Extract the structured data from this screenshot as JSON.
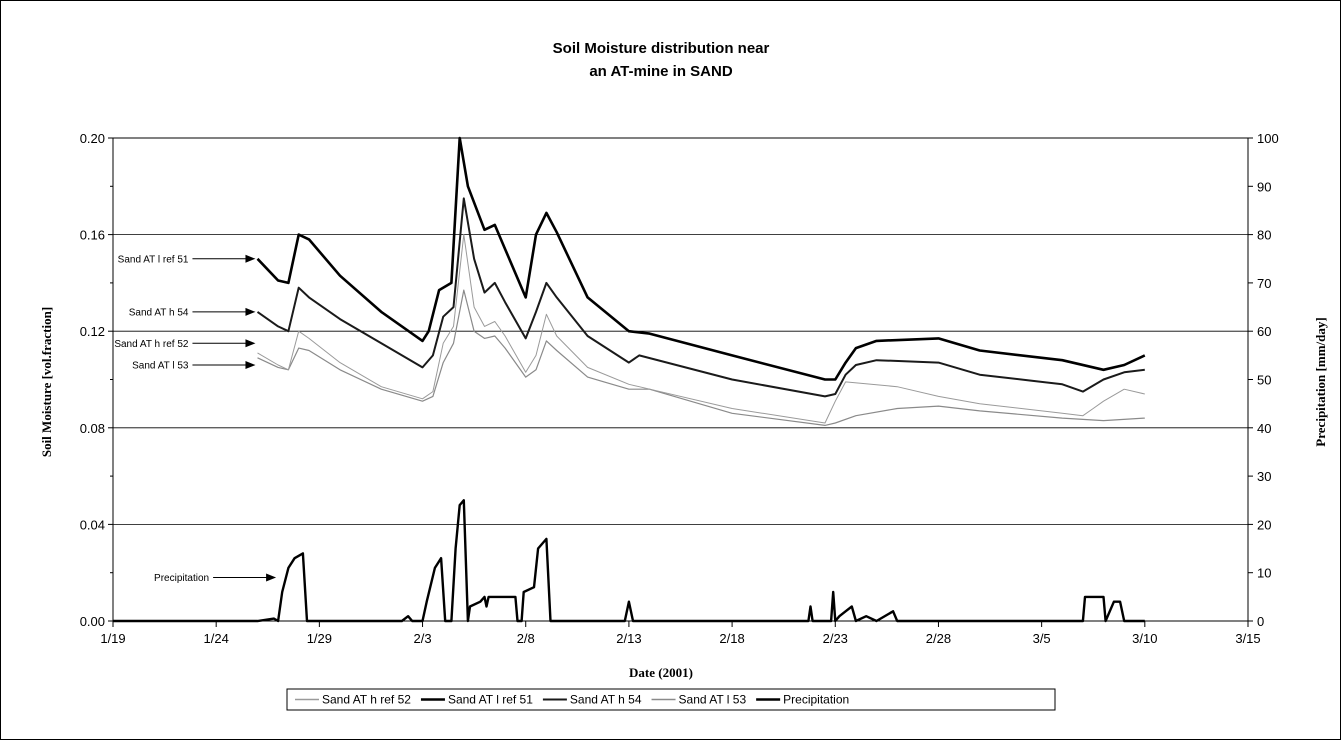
{
  "chart_data": {
    "type": "line",
    "title": "Soil Moisture distribution near",
    "subtitle": "an AT-mine in SAND",
    "xlabel": "Date (2001)",
    "ylabel": "Soil Moisture [vol.fraction]",
    "y2label": "Precipitation [mm/day]",
    "xlim": [
      "1/19",
      "3/15"
    ],
    "x_ticks": [
      "1/19",
      "1/24",
      "1/29",
      "2/3",
      "2/8",
      "2/13",
      "2/18",
      "2/23",
      "2/28",
      "3/5",
      "3/10",
      "3/15"
    ],
    "ylim": [
      0,
      0.2
    ],
    "y_ticks": [
      "0.00",
      "0.04",
      "0.08",
      "0.12",
      "0.16",
      "0.20"
    ],
    "y2lim": [
      0,
      100
    ],
    "y2_ticks": [
      "0",
      "10",
      "20",
      "30",
      "40",
      "50",
      "60",
      "70",
      "80",
      "90",
      "100"
    ],
    "grid": "horizontal at major y ticks",
    "legend_position": "bottom",
    "series": [
      {
        "name": "Sand AT h ref 52",
        "axis": "left",
        "color": "#9a9a9a",
        "points": [
          [
            "1/26",
            0.111
          ],
          [
            "1/27",
            0.106
          ],
          [
            "1/27.5",
            0.104
          ],
          [
            "1/28",
            0.12
          ],
          [
            "1/28.5",
            0.117
          ],
          [
            "1/30",
            0.107
          ],
          [
            "2/1",
            0.097
          ],
          [
            "2/3",
            0.092
          ],
          [
            "2/3.5",
            0.095
          ],
          [
            "2/4",
            0.115
          ],
          [
            "2/4.5",
            0.122
          ],
          [
            "2/5",
            0.16
          ],
          [
            "2/5.5",
            0.13
          ],
          [
            "2/6",
            0.122
          ],
          [
            "2/6.5",
            0.124
          ],
          [
            "2/7",
            0.118
          ],
          [
            "2/8",
            0.103
          ],
          [
            "2/8.5",
            0.11
          ],
          [
            "2/9",
            0.127
          ],
          [
            "2/9.5",
            0.118
          ],
          [
            "2/11",
            0.105
          ],
          [
            "2/13",
            0.098
          ],
          [
            "2/13.5",
            0.097
          ],
          [
            "2/18",
            0.088
          ],
          [
            "2/22.5",
            0.082
          ],
          [
            "2/23",
            0.091
          ],
          [
            "2/23.5",
            0.099
          ],
          [
            "2/26",
            0.097
          ],
          [
            "2/28",
            0.093
          ],
          [
            "3/2",
            0.09
          ],
          [
            "3/6",
            0.086
          ],
          [
            "3/7",
            0.085
          ],
          [
            "3/7.5",
            0.088
          ],
          [
            "3/8",
            0.091
          ],
          [
            "3/9",
            0.096
          ],
          [
            "3/10",
            0.094
          ]
        ]
      },
      {
        "name": "Sand AT l ref 51",
        "axis": "left",
        "color": "#000000",
        "points": [
          [
            "1/26",
            0.15
          ],
          [
            "1/27",
            0.141
          ],
          [
            "1/27.5",
            0.14
          ],
          [
            "1/28",
            0.16
          ],
          [
            "1/28.5",
            0.158
          ],
          [
            "1/30",
            0.143
          ],
          [
            "2/1",
            0.128
          ],
          [
            "2/3",
            0.116
          ],
          [
            "2/3.3",
            0.12
          ],
          [
            "2/3.8",
            0.137
          ],
          [
            "2/4.4",
            0.14
          ],
          [
            "2/4.8",
            0.2
          ],
          [
            "2/5.2",
            0.18
          ],
          [
            "2/6",
            0.162
          ],
          [
            "2/6.5",
            0.164
          ],
          [
            "2/7",
            0.154
          ],
          [
            "2/8",
            0.134
          ],
          [
            "2/8.5",
            0.16
          ],
          [
            "2/9",
            0.169
          ],
          [
            "2/9.5",
            0.161
          ],
          [
            "2/11",
            0.134
          ],
          [
            "2/13",
            0.12
          ],
          [
            "2/14",
            0.119
          ],
          [
            "2/18",
            0.11
          ],
          [
            "2/22.5",
            0.1
          ],
          [
            "2/23",
            0.1
          ],
          [
            "2/23.5",
            0.107
          ],
          [
            "2/24",
            0.113
          ],
          [
            "2/25",
            0.116
          ],
          [
            "2/28",
            0.117
          ],
          [
            "3/2",
            0.112
          ],
          [
            "3/6",
            0.108
          ],
          [
            "3/8",
            0.104
          ],
          [
            "3/9",
            0.106
          ],
          [
            "3/10",
            0.11
          ]
        ]
      },
      {
        "name": "Sand AT h 54",
        "axis": "left",
        "color": "#1a1a1a",
        "points": [
          [
            "1/26",
            0.128
          ],
          [
            "1/27",
            0.122
          ],
          [
            "1/27.5",
            0.12
          ],
          [
            "1/28",
            0.138
          ],
          [
            "1/28.5",
            0.134
          ],
          [
            "1/30",
            0.125
          ],
          [
            "2/1",
            0.115
          ],
          [
            "2/3",
            0.105
          ],
          [
            "2/3.5",
            0.11
          ],
          [
            "2/4",
            0.126
          ],
          [
            "2/4.5",
            0.13
          ],
          [
            "2/5",
            0.175
          ],
          [
            "2/5.5",
            0.15
          ],
          [
            "2/6",
            0.136
          ],
          [
            "2/6.5",
            0.14
          ],
          [
            "2/7",
            0.132
          ],
          [
            "2/8",
            0.117
          ],
          [
            "2/8.5",
            0.128
          ],
          [
            "2/9",
            0.14
          ],
          [
            "2/9.5",
            0.134
          ],
          [
            "2/11",
            0.118
          ],
          [
            "2/13",
            0.107
          ],
          [
            "2/13.5",
            0.11
          ],
          [
            "2/18",
            0.1
          ],
          [
            "2/22.5",
            0.093
          ],
          [
            "2/23",
            0.094
          ],
          [
            "2/23.5",
            0.102
          ],
          [
            "2/24",
            0.106
          ],
          [
            "2/25",
            0.108
          ],
          [
            "2/28",
            0.107
          ],
          [
            "3/2",
            0.102
          ],
          [
            "3/6",
            0.098
          ],
          [
            "3/7",
            0.095
          ],
          [
            "3/8",
            0.1
          ],
          [
            "3/9",
            0.103
          ],
          [
            "3/10",
            0.104
          ]
        ]
      },
      {
        "name": "Sand AT l 53",
        "axis": "left",
        "color": "#8a8a8a",
        "points": [
          [
            "1/26",
            0.109
          ],
          [
            "1/27",
            0.105
          ],
          [
            "1/27.5",
            0.104
          ],
          [
            "1/28",
            0.113
          ],
          [
            "1/28.5",
            0.112
          ],
          [
            "1/30",
            0.104
          ],
          [
            "2/1",
            0.096
          ],
          [
            "2/3",
            0.091
          ],
          [
            "2/3.5",
            0.093
          ],
          [
            "2/4",
            0.107
          ],
          [
            "2/4.5",
            0.115
          ],
          [
            "2/5",
            0.137
          ],
          [
            "2/5.5",
            0.12
          ],
          [
            "2/6",
            0.117
          ],
          [
            "2/6.5",
            0.118
          ],
          [
            "2/7",
            0.113
          ],
          [
            "2/8",
            0.101
          ],
          [
            "2/8.5",
            0.104
          ],
          [
            "2/9",
            0.116
          ],
          [
            "2/9.5",
            0.112
          ],
          [
            "2/11",
            0.101
          ],
          [
            "2/13",
            0.096
          ],
          [
            "2/14",
            0.096
          ],
          [
            "2/18",
            0.086
          ],
          [
            "2/22.5",
            0.081
          ],
          [
            "2/23",
            0.082
          ],
          [
            "2/24",
            0.085
          ],
          [
            "2/26",
            0.088
          ],
          [
            "2/28",
            0.089
          ],
          [
            "3/2",
            0.087
          ],
          [
            "3/6",
            0.084
          ],
          [
            "3/8",
            0.083
          ],
          [
            "3/10",
            0.084
          ]
        ]
      },
      {
        "name": "Precipitation",
        "axis": "right",
        "color": "#000000",
        "points": [
          [
            "1/19",
            0
          ],
          [
            "1/26",
            0
          ],
          [
            "1/26.8",
            0.5
          ],
          [
            "1/27",
            0
          ],
          [
            "1/27.2",
            6
          ],
          [
            "1/27.5",
            11
          ],
          [
            "1/27.8",
            13
          ],
          [
            "1/28.2",
            14
          ],
          [
            "1/28.4",
            0
          ],
          [
            "1/29",
            0
          ],
          [
            "2/2",
            0
          ],
          [
            "2/2.3",
            1
          ],
          [
            "2/2.5",
            0
          ],
          [
            "2/3",
            0
          ],
          [
            "2/3.2",
            4
          ],
          [
            "2/3.6",
            11
          ],
          [
            "2/3.9",
            13
          ],
          [
            "2/4.1",
            0
          ],
          [
            "2/4.4",
            0
          ],
          [
            "2/4.6",
            15
          ],
          [
            "2/4.8",
            24
          ],
          [
            "2/5",
            25
          ],
          [
            "2/5.2",
            0
          ],
          [
            "2/5.3",
            3
          ],
          [
            "2/5.8",
            4
          ],
          [
            "2/6",
            5
          ],
          [
            "2/6.1",
            3
          ],
          [
            "2/6.2",
            5
          ],
          [
            "2/7.5",
            5
          ],
          [
            "2/7.6",
            0
          ],
          [
            "2/7.8",
            0
          ],
          [
            "2/7.9",
            6
          ],
          [
            "2/8.4",
            7
          ],
          [
            "2/8.6",
            15
          ],
          [
            "2/9",
            17
          ],
          [
            "2/9.2",
            0
          ],
          [
            "2/12.8",
            0
          ],
          [
            "2/13",
            4
          ],
          [
            "2/13.2",
            0
          ],
          [
            "2/21.7",
            0
          ],
          [
            "2/21.8",
            3
          ],
          [
            "2/21.9",
            0
          ],
          [
            "2/22.8",
            0
          ],
          [
            "2/22.9",
            6
          ],
          [
            "2/23",
            0
          ],
          [
            "2/23.2",
            1
          ],
          [
            "2/23.5",
            2
          ],
          [
            "2/23.8",
            3
          ],
          [
            "2/24",
            0
          ],
          [
            "2/24.5",
            1
          ],
          [
            "2/25",
            0
          ],
          [
            "2/25.8",
            2
          ],
          [
            "2/26",
            0
          ],
          [
            "3/7",
            0
          ],
          [
            "3/7.1",
            5
          ],
          [
            "3/8",
            5
          ],
          [
            "3/8.1",
            0
          ],
          [
            "3/8.5",
            4
          ],
          [
            "3/8.8",
            4
          ],
          [
            "3/9",
            0
          ],
          [
            "3/10",
            0
          ]
        ]
      }
    ],
    "annotations": [
      {
        "text": "Sand AT l ref 51",
        "x": "1/26",
        "y": 0.15
      },
      {
        "text": "Sand AT h 54",
        "x": "1/26",
        "y": 0.128
      },
      {
        "text": "Sand AT h ref 52",
        "x": "1/26",
        "y": 0.115
      },
      {
        "text": "Sand AT l 53",
        "x": "1/26",
        "y": 0.106
      },
      {
        "text": "Precipitation",
        "x": "1/27",
        "y": 0.018
      }
    ]
  }
}
